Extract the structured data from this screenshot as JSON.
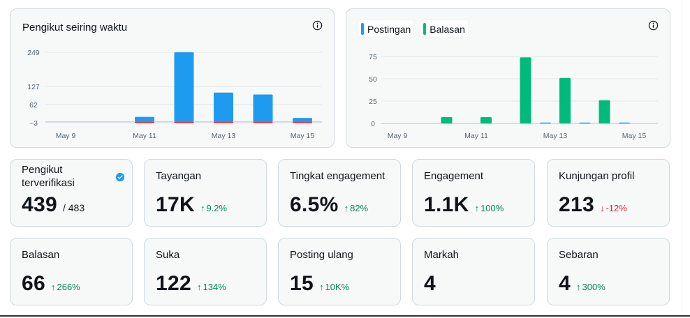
{
  "charts": {
    "followers": {
      "title": "Pengikut seiring waktu",
      "info_icon": "info-icon"
    },
    "activity": {
      "legend": [
        {
          "label": "Postingan",
          "color": "#1d9bf0"
        },
        {
          "label": "Balasan",
          "color": "#00ba7c"
        }
      ],
      "info_icon": "info-icon"
    }
  },
  "chart_data": [
    {
      "type": "bar",
      "title": "Pengikut seiring waktu",
      "categories": [
        "May 9",
        "May 10",
        "May 11",
        "May 12",
        "May 13",
        "May 14",
        "May 15"
      ],
      "x_tick_labels": [
        "May 9",
        "May 11",
        "May 13",
        "May 15"
      ],
      "y_tick_labels": [
        "249",
        "127",
        "62",
        "-3"
      ],
      "ylim": [
        -3,
        249
      ],
      "series": [
        {
          "values": [
            0,
            0,
            18,
            249,
            105,
            98,
            14
          ],
          "color": "#1d9bf0"
        },
        {
          "values": [
            0,
            0,
            -1,
            -3,
            -3,
            -2,
            -1
          ],
          "color": "#f4212e"
        }
      ],
      "grid": true
    },
    {
      "type": "bar",
      "categories": [
        "May 9",
        "May 10",
        "May 11",
        "May 12",
        "May 13",
        "May 14",
        "May 15"
      ],
      "x_tick_labels": [
        "May 9",
        "May 11",
        "May 13",
        "May 15"
      ],
      "y_tick_labels": [
        "75",
        "50",
        "25",
        "0"
      ],
      "ylim": [
        0,
        75
      ],
      "legend": "top-left",
      "series": [
        {
          "name": "Postingan",
          "values": [
            0,
            0,
            0,
            0,
            1,
            1,
            1
          ],
          "color": "#1d9bf0"
        },
        {
          "name": "Balasan",
          "values": [
            0,
            7,
            7,
            74,
            51,
            26,
            0
          ],
          "color": "#00ba7c"
        }
      ],
      "grid": true
    }
  ],
  "stats": {
    "verified_followers": {
      "label": "Pengikut terverifikasi",
      "value": "439",
      "sub": "/ 483",
      "icon": "verified-badge-icon"
    },
    "impressions": {
      "label": "Tayangan",
      "value": "17K",
      "delta": "9.2%",
      "direction": "up"
    },
    "engagement_rate": {
      "label": "Tingkat engagement",
      "value": "6.5%",
      "delta": "82%",
      "direction": "up"
    },
    "engagements": {
      "label": "Engagement",
      "value": "1.1K",
      "delta": "100%",
      "direction": "up"
    },
    "profile_visits": {
      "label": "Kunjungan profil",
      "value": "213",
      "delta": "-12%",
      "direction": "down"
    },
    "replies": {
      "label": "Balasan",
      "value": "66",
      "delta": "266%",
      "direction": "up"
    },
    "likes": {
      "label": "Suka",
      "value": "122",
      "delta": "134%",
      "direction": "up"
    },
    "reposts": {
      "label": "Posting ulang",
      "value": "15",
      "delta": "10K%",
      "direction": "up"
    },
    "bookmarks": {
      "label": "Markah",
      "value": "4"
    },
    "shares": {
      "label": "Sebaran",
      "value": "4",
      "delta": "300%",
      "direction": "up"
    }
  },
  "arrows": {
    "up": "↑",
    "down": "↓"
  }
}
